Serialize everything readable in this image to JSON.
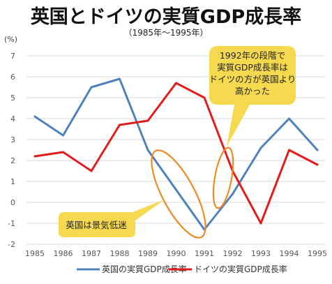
{
  "title": "英国とドイツの実質GDP成長率",
  "subtitle": "（1985年～1995年）",
  "chart_data": {
    "type": "line",
    "unit": "(%)",
    "x": [
      "1985",
      "1986",
      "1987",
      "1988",
      "1989",
      "1990",
      "1991",
      "1992",
      "1993",
      "1994",
      "1995"
    ],
    "ylim": [
      -2,
      7
    ],
    "yticks": [
      "7",
      "6",
      "5",
      "4",
      "3",
      "2",
      "1",
      "0",
      "-1",
      "-2"
    ],
    "grid": true,
    "legend_position": "bottom",
    "series": [
      {
        "name": "英国の実質GDP成長率",
        "color": "#4f81bd",
        "values": [
          4.1,
          3.2,
          5.5,
          5.9,
          2.5,
          0.6,
          -1.3,
          0.4,
          2.6,
          4.0,
          2.5
        ]
      },
      {
        "name": "ドイツの実質GDP成長率",
        "color": "#e31b1b",
        "values": [
          2.2,
          2.4,
          1.5,
          3.7,
          3.9,
          5.7,
          5.0,
          1.5,
          -1.0,
          2.5,
          1.8
        ]
      }
    ],
    "annotations": [
      {
        "id": "germany-higher",
        "lines": [
          "1992年の段階で",
          "実質GDP成長率は",
          "ドイツの方が英国より",
          "高かった"
        ],
        "fill": "#f6d94e"
      },
      {
        "id": "uk-recession",
        "lines": [
          "英国は景気低迷"
        ],
        "fill": "#f6d94e"
      }
    ],
    "highlight_color": "#f08a25"
  }
}
